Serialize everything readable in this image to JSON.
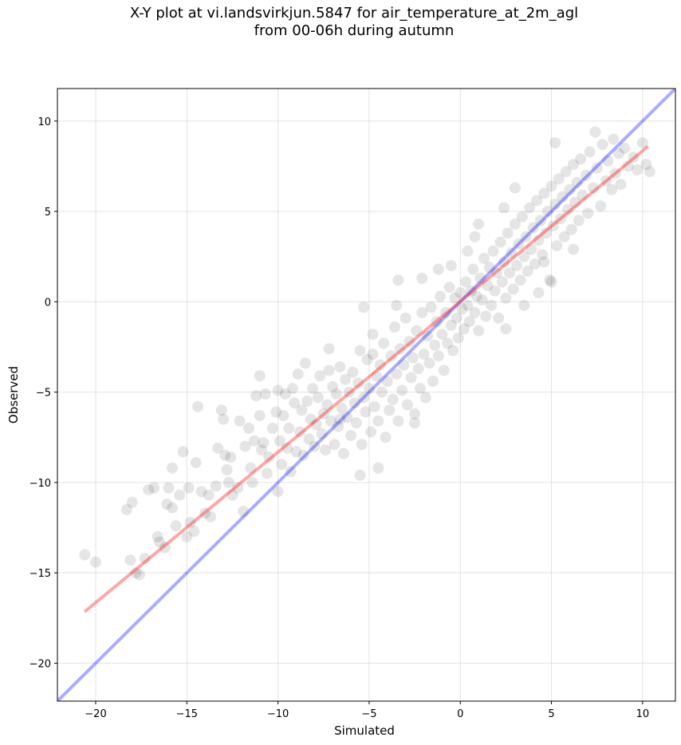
{
  "chart_data": {
    "type": "scatter",
    "title_line1": "X-Y plot at vi.landsvirkjun.5847 for air_temperature_at_2m_agl",
    "title_line2": "from 00-06h during autumn",
    "xlabel": "Simulated",
    "ylabel": "Observed",
    "xlim": [
      -22.1,
      11.8
    ],
    "ylim": [
      -22.1,
      11.8
    ],
    "xticks": [
      -20,
      -15,
      -10,
      -5,
      0,
      5,
      10
    ],
    "yticks": [
      -20,
      -15,
      -10,
      -5,
      0,
      5,
      10
    ],
    "xtick_labels": [
      "−20",
      "−15",
      "−10",
      "−5",
      "0",
      "5",
      "10"
    ],
    "ytick_labels": [
      "−20",
      "−15",
      "−10",
      "−5",
      "0",
      "5",
      "10"
    ],
    "grid": true,
    "point_color": "#000000",
    "point_alpha": 0.1,
    "identity_line": {
      "color": "#0000ff",
      "alpha": 0.33,
      "x": [
        -22.1,
        11.8
      ],
      "y": [
        -22.1,
        11.8
      ]
    },
    "fit_line": {
      "color": "#ff0000",
      "alpha": 0.35,
      "x": [
        -20.6,
        10.3
      ],
      "y": [
        -17.15,
        8.6
      ]
    },
    "points": [
      [
        -20.6,
        -14.0
      ],
      [
        -20.0,
        -14.4
      ],
      [
        -18.3,
        -11.5
      ],
      [
        -18.0,
        -11.1
      ],
      [
        -18.1,
        -14.3
      ],
      [
        -17.8,
        -15.0
      ],
      [
        -17.6,
        -15.1
      ],
      [
        -17.3,
        -14.2
      ],
      [
        -17.1,
        -10.4
      ],
      [
        -16.8,
        -10.3
      ],
      [
        -16.6,
        -13.0
      ],
      [
        -16.5,
        -13.3
      ],
      [
        -16.2,
        -13.6
      ],
      [
        -16.1,
        -11.2
      ],
      [
        -16.0,
        -10.3
      ],
      [
        -15.8,
        -9.2
      ],
      [
        -15.8,
        -11.4
      ],
      [
        -15.6,
        -12.4
      ],
      [
        -15.4,
        -10.7
      ],
      [
        -15.2,
        -8.3
      ],
      [
        -15.0,
        -13.0
      ],
      [
        -14.9,
        -10.3
      ],
      [
        -14.8,
        -12.2
      ],
      [
        -14.6,
        -12.7
      ],
      [
        -14.5,
        -8.9
      ],
      [
        -14.4,
        -5.8
      ],
      [
        -14.2,
        -10.5
      ],
      [
        -14.0,
        -11.7
      ],
      [
        -13.8,
        -10.7
      ],
      [
        -13.7,
        -11.9
      ],
      [
        -13.4,
        -10.2
      ],
      [
        -13.3,
        -8.1
      ],
      [
        -13.1,
        -6.0
      ],
      [
        -13.0,
        -6.5
      ],
      [
        -12.9,
        -8.5
      ],
      [
        -12.8,
        -9.3
      ],
      [
        -12.7,
        -10.0
      ],
      [
        -12.6,
        -8.6
      ],
      [
        -12.5,
        -10.7
      ],
      [
        -12.2,
        -10.3
      ],
      [
        -12.1,
        -6.6
      ],
      [
        -11.9,
        -11.6
      ],
      [
        -11.8,
        -8.0
      ],
      [
        -11.6,
        -7.0
      ],
      [
        -11.5,
        -9.2
      ],
      [
        -11.4,
        -10.0
      ],
      [
        -11.3,
        -7.7
      ],
      [
        -11.2,
        -5.2
      ],
      [
        -11.0,
        -4.1
      ],
      [
        -11.0,
        -6.3
      ],
      [
        -10.9,
        -8.2
      ],
      [
        -10.8,
        -7.8
      ],
      [
        -10.7,
        -5.1
      ],
      [
        -10.6,
        -9.5
      ],
      [
        -10.5,
        -8.6
      ],
      [
        -10.3,
        -7.0
      ],
      [
        -10.1,
        -6.1
      ],
      [
        -10.0,
        -4.9
      ],
      [
        -10.0,
        -10.5
      ],
      [
        -9.9,
        -7.7
      ],
      [
        -9.8,
        -9.0
      ],
      [
        -9.7,
        -6.3
      ],
      [
        -9.6,
        -5.1
      ],
      [
        -9.5,
        -8.1
      ],
      [
        -9.4,
        -7.0
      ],
      [
        -9.3,
        -9.4
      ],
      [
        -9.2,
        -4.8
      ],
      [
        -9.1,
        -5.6
      ],
      [
        -9.0,
        -8.3
      ],
      [
        -8.9,
        -4.0
      ],
      [
        -8.8,
        -7.2
      ],
      [
        -8.7,
        -6.0
      ],
      [
        -8.6,
        -8.5
      ],
      [
        -8.5,
        -3.4
      ],
      [
        -8.4,
        -5.5
      ],
      [
        -8.3,
        -7.6
      ],
      [
        -8.2,
        -6.5
      ],
      [
        -8.1,
        -4.8
      ],
      [
        -8.0,
        -8.0
      ],
      [
        -7.9,
        -6.8
      ],
      [
        -7.8,
        -5.3
      ],
      [
        -7.7,
        -4.1
      ],
      [
        -7.6,
        -7.3
      ],
      [
        -7.5,
        -6.2
      ],
      [
        -7.4,
        -8.2
      ],
      [
        -7.3,
        -5.7
      ],
      [
        -7.2,
        -3.8
      ],
      [
        -7.1,
        -6.6
      ],
      [
        -7.0,
        -4.7
      ],
      [
        -6.9,
        -7.9
      ],
      [
        -6.8,
        -5.1
      ],
      [
        -6.7,
        -6.9
      ],
      [
        -6.6,
        -3.6
      ],
      [
        -6.5,
        -5.9
      ],
      [
        -6.4,
        -8.4
      ],
      [
        -6.3,
        -4.3
      ],
      [
        -6.2,
        -6.4
      ],
      [
        -6.1,
        -5.0
      ],
      [
        -6.0,
        -7.4
      ],
      [
        -5.9,
        -3.9
      ],
      [
        -5.8,
        -5.6
      ],
      [
        -5.7,
        -6.7
      ],
      [
        -5.6,
        -4.5
      ],
      [
        -5.5,
        -9.6
      ],
      [
        -5.5,
        -2.7
      ],
      [
        -5.4,
        -7.9
      ],
      [
        -5.3,
        -5.3
      ],
      [
        -5.2,
        -6.1
      ],
      [
        -5.1,
        -3.2
      ],
      [
        -5.0,
        -4.8
      ],
      [
        -4.9,
        -7.2
      ],
      [
        -4.8,
        -1.8
      ],
      [
        -4.7,
        -5.8
      ],
      [
        -4.6,
        -4.1
      ],
      [
        -4.5,
        -9.2
      ],
      [
        -4.5,
        -6.6
      ],
      [
        -4.4,
        -3.5
      ],
      [
        -4.3,
        -5.0
      ],
      [
        -4.2,
        -2.3
      ],
      [
        -4.1,
        -7.5
      ],
      [
        -4.0,
        -4.4
      ],
      [
        -3.9,
        -6.0
      ],
      [
        -3.8,
        -3.0
      ],
      [
        -3.7,
        -5.4
      ],
      [
        -3.6,
        -1.4
      ],
      [
        -3.5,
        -4.0
      ],
      [
        -3.4,
        -6.6
      ],
      [
        -3.3,
        -2.6
      ],
      [
        -3.2,
        -4.9
      ],
      [
        -3.1,
        -3.5
      ],
      [
        -3.0,
        -0.9
      ],
      [
        -2.9,
        -5.7
      ],
      [
        -2.8,
        -2.2
      ],
      [
        -2.7,
        -4.2
      ],
      [
        -2.6,
        -3.1
      ],
      [
        -2.5,
        -6.2
      ],
      [
        -2.4,
        -1.6
      ],
      [
        -2.3,
        -3.7
      ],
      [
        -2.2,
        -4.8
      ],
      [
        -2.1,
        -0.6
      ],
      [
        -2.0,
        -2.9
      ],
      [
        -1.9,
        -5.3
      ],
      [
        -1.8,
        -1.9
      ],
      [
        -1.7,
        -3.4
      ],
      [
        -1.6,
        -0.3
      ],
      [
        -1.5,
        -4.4
      ],
      [
        -1.4,
        -2.4
      ],
      [
        -1.3,
        -1.1
      ],
      [
        -1.2,
        -3.0
      ],
      [
        -1.1,
        0.3
      ],
      [
        -1.0,
        -1.8
      ],
      [
        -0.9,
        -3.8
      ],
      [
        -0.8,
        -0.6
      ],
      [
        -0.7,
        -2.3
      ],
      [
        -0.6,
        0.8
      ],
      [
        -0.5,
        -1.3
      ],
      [
        -0.4,
        -2.7
      ],
      [
        -0.3,
        0.2
      ],
      [
        -0.2,
        -0.9
      ],
      [
        -0.1,
        -2.0
      ],
      [
        0.0,
        0.5
      ],
      [
        0.1,
        -0.4
      ],
      [
        0.2,
        -1.5
      ],
      [
        0.3,
        1.1
      ],
      [
        0.4,
        -0.2
      ],
      [
        0.5,
        -1.1
      ],
      [
        0.6,
        0.6
      ],
      [
        0.7,
        1.8
      ],
      [
        0.8,
        -0.6
      ],
      [
        0.9,
        0.3
      ],
      [
        1.0,
        -1.6
      ],
      [
        1.1,
        1.3
      ],
      [
        1.2,
        0.1
      ],
      [
        1.3,
        2.4
      ],
      [
        1.4,
        -0.8
      ],
      [
        1.5,
        0.9
      ],
      [
        1.6,
        1.9
      ],
      [
        1.7,
        -0.2
      ],
      [
        1.8,
        2.8
      ],
      [
        1.9,
        0.6
      ],
      [
        2.0,
        1.6
      ],
      [
        2.1,
        -0.9
      ],
      [
        2.2,
        3.3
      ],
      [
        2.3,
        1.1
      ],
      [
        2.4,
        2.2
      ],
      [
        2.5,
        0.2
      ],
      [
        2.6,
        3.8
      ],
      [
        2.7,
        1.6
      ],
      [
        2.8,
        2.7
      ],
      [
        2.9,
        0.7
      ],
      [
        3.0,
        4.3
      ],
      [
        3.1,
        2.0
      ],
      [
        3.2,
        3.2
      ],
      [
        3.3,
        1.2
      ],
      [
        3.4,
        4.7
      ],
      [
        3.5,
        2.5
      ],
      [
        3.6,
        3.6
      ],
      [
        3.7,
        1.7
      ],
      [
        3.8,
        5.2
      ],
      [
        3.9,
        2.9
      ],
      [
        4.0,
        4.1
      ],
      [
        4.1,
        2.1
      ],
      [
        4.2,
        5.6
      ],
      [
        4.3,
        3.4
      ],
      [
        4.4,
        4.5
      ],
      [
        4.5,
        2.6
      ],
      [
        4.6,
        6.0
      ],
      [
        4.7,
        3.8
      ],
      [
        4.8,
        5.0
      ],
      [
        4.9,
        1.2
      ],
      [
        5.0,
        6.4
      ],
      [
        5.1,
        4.2
      ],
      [
        5.2,
        5.4
      ],
      [
        5.3,
        3.1
      ],
      [
        5.4,
        6.8
      ],
      [
        5.5,
        4.6
      ],
      [
        5.6,
        5.8
      ],
      [
        5.7,
        3.6
      ],
      [
        5.8,
        7.2
      ],
      [
        5.9,
        5.1
      ],
      [
        6.0,
        6.2
      ],
      [
        6.1,
        4.0
      ],
      [
        6.2,
        7.6
      ],
      [
        6.3,
        5.5
      ],
      [
        6.4,
        6.6
      ],
      [
        6.5,
        4.5
      ],
      [
        6.6,
        7.9
      ],
      [
        6.7,
        5.9
      ],
      [
        6.9,
        7.0
      ],
      [
        7.0,
        4.9
      ],
      [
        7.1,
        8.3
      ],
      [
        7.3,
        6.3
      ],
      [
        7.4,
        9.4
      ],
      [
        7.5,
        7.4
      ],
      [
        7.7,
        5.3
      ],
      [
        7.8,
        8.7
      ],
      [
        8.0,
        6.7
      ],
      [
        8.1,
        7.8
      ],
      [
        8.3,
        6.2
      ],
      [
        8.4,
        9.0
      ],
      [
        8.5,
        7.1
      ],
      [
        8.7,
        8.2
      ],
      [
        8.8,
        6.5
      ],
      [
        9.0,
        8.5
      ],
      [
        9.2,
        7.5
      ],
      [
        9.5,
        8.0
      ],
      [
        9.7,
        7.3
      ],
      [
        10.0,
        8.8
      ],
      [
        10.2,
        7.6
      ],
      [
        10.4,
        7.2
      ],
      [
        5.2,
        8.8
      ],
      [
        3.0,
        6.3
      ],
      [
        2.4,
        5.2
      ],
      [
        1.0,
        4.3
      ],
      [
        -0.5,
        2.0
      ],
      [
        -2.1,
        1.3
      ],
      [
        0.4,
        2.8
      ],
      [
        3.5,
        -0.2
      ],
      [
        4.3,
        0.5
      ],
      [
        5.0,
        1.1
      ],
      [
        2.5,
        -1.5
      ],
      [
        -1.2,
        1.8
      ],
      [
        -3.5,
        -0.2
      ],
      [
        -5.3,
        -0.3
      ],
      [
        -2.5,
        -6.7
      ],
      [
        -4.8,
        -2.9
      ],
      [
        -6.6,
        -6.5
      ],
      [
        -7.2,
        -2.6
      ],
      [
        -3.4,
        1.2
      ],
      [
        0.8,
        3.6
      ],
      [
        4.6,
        2.2
      ],
      [
        6.2,
        2.9
      ]
    ]
  }
}
